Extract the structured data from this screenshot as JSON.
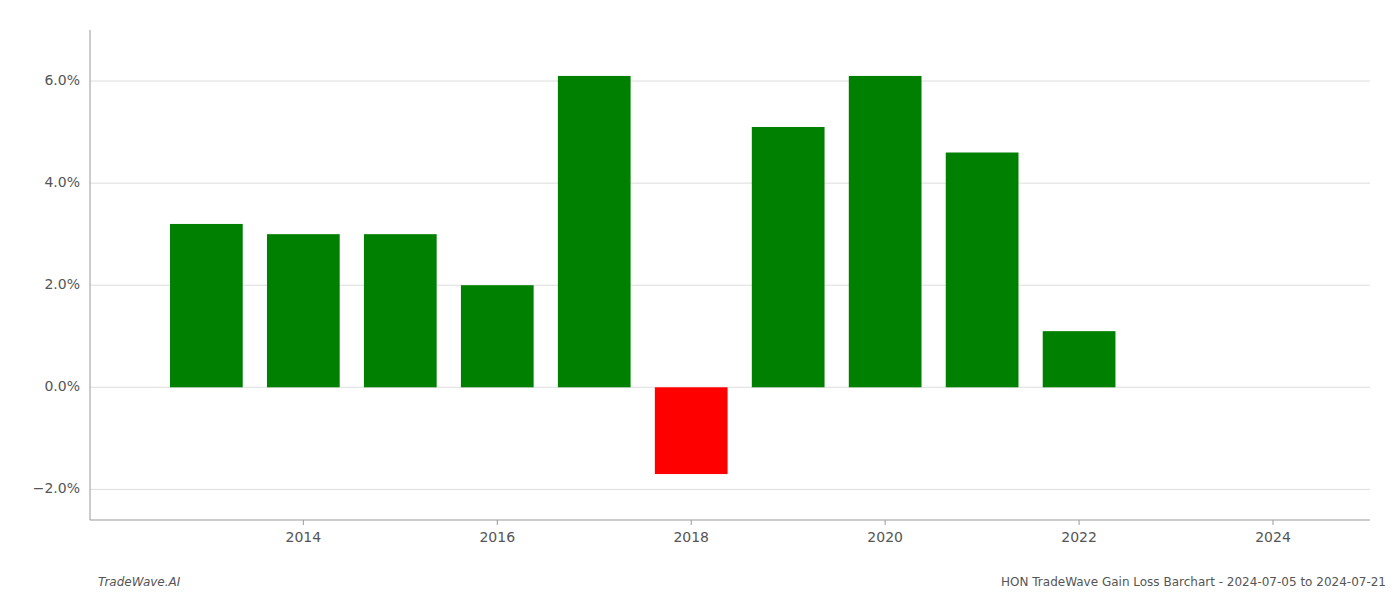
{
  "chart_data": {
    "type": "bar",
    "x": [
      2013,
      2014,
      2015,
      2016,
      2017,
      2018,
      2019,
      2020,
      2021,
      2022,
      2023
    ],
    "values": [
      3.2,
      3.0,
      3.0,
      2.0,
      6.1,
      -1.7,
      5.1,
      6.1,
      4.6,
      1.1,
      0.0
    ],
    "colors": [
      "#008000",
      "#008000",
      "#008000",
      "#008000",
      "#008000",
      "#ff0000",
      "#008000",
      "#008000",
      "#008000",
      "#008000",
      "#008000"
    ],
    "xlim": [
      2011.8,
      2025.0
    ],
    "xticks": [
      2014,
      2016,
      2018,
      2020,
      2022,
      2024
    ],
    "ylim": [
      -2.6,
      7.0
    ],
    "yticks": [
      {
        "value": -2.0,
        "label": "−2.0%"
      },
      {
        "value": 0.0,
        "label": "0.0%"
      },
      {
        "value": 2.0,
        "label": "2.0%"
      },
      {
        "value": 4.0,
        "label": "4.0%"
      },
      {
        "value": 6.0,
        "label": "6.0%"
      }
    ],
    "grid": true,
    "annotations": [
      "TradeWave.AI",
      "HON TradeWave Gain Loss Barchart - 2024-07-05 to 2024-07-21"
    ]
  }
}
